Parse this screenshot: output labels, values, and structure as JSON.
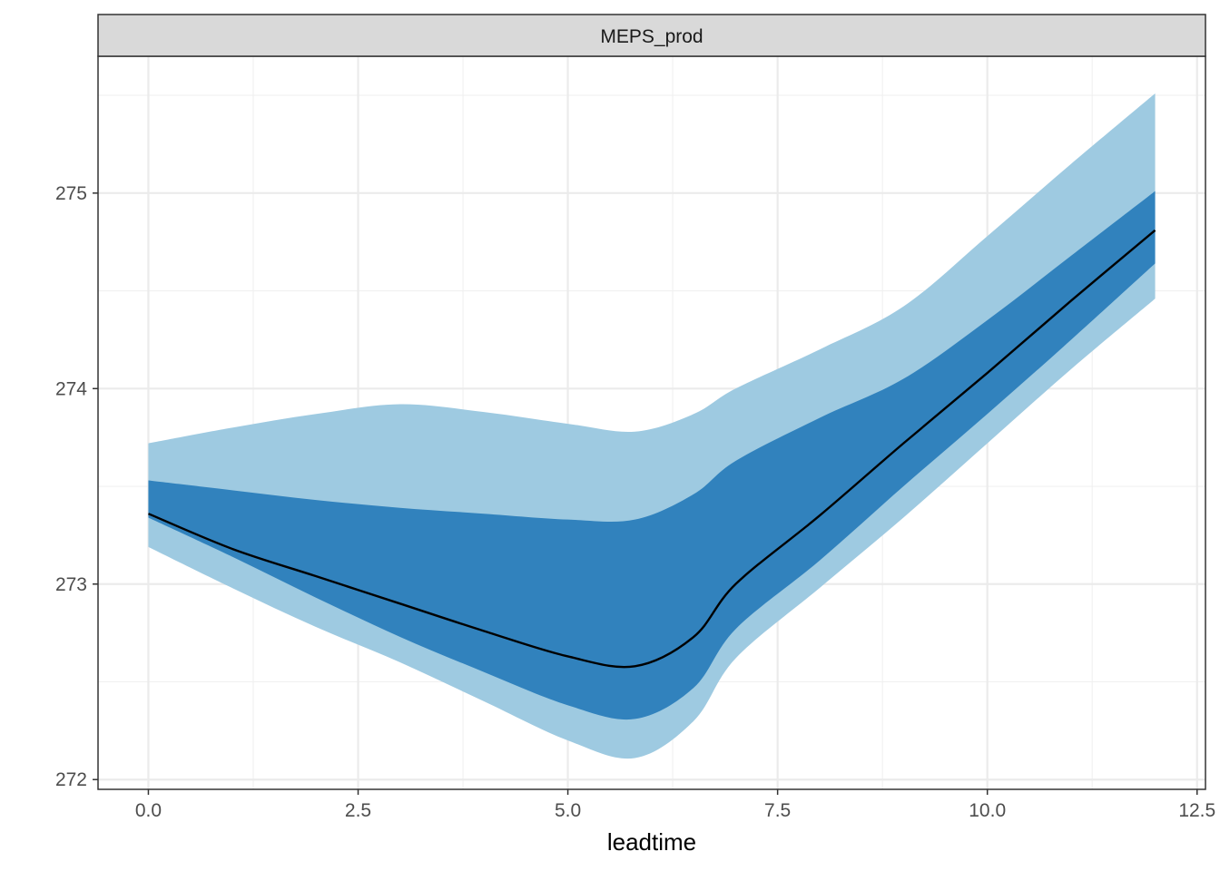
{
  "chart_data": {
    "type": "area",
    "facet": "MEPS_prod",
    "xlabel": "leadtime",
    "ylabel": "",
    "xlim": [
      -0.6,
      12.6
    ],
    "ylim": [
      271.95,
      275.7
    ],
    "x_ticks": [
      0,
      2.5,
      5,
      7.5,
      10,
      12.5
    ],
    "x_tick_labels": [
      "0.0",
      "2.5",
      "5.0",
      "7.5",
      "10.0",
      "12.5"
    ],
    "y_ticks": [
      272,
      273,
      274,
      275
    ],
    "y_tick_labels": [
      "272",
      "273",
      "274",
      "275"
    ],
    "grid": true,
    "x": [
      0,
      1,
      2,
      3,
      4,
      5,
      5.8,
      6.5,
      7,
      8,
      9,
      10,
      11,
      12
    ],
    "series": [
      {
        "role": "outer-band",
        "color": "#9ecae1",
        "upper": [
          273.72,
          273.8,
          273.87,
          273.92,
          273.88,
          273.82,
          273.78,
          273.87,
          274.0,
          274.2,
          274.42,
          274.78,
          275.15,
          275.51
        ],
        "lower": [
          273.19,
          272.98,
          272.78,
          272.6,
          272.4,
          272.2,
          272.11,
          272.3,
          272.62,
          272.98,
          273.34,
          273.72,
          274.1,
          274.46
        ]
      },
      {
        "role": "inner-band",
        "color": "#3182bd",
        "upper": [
          273.53,
          273.48,
          273.43,
          273.39,
          273.36,
          273.33,
          273.33,
          273.46,
          273.63,
          273.85,
          274.05,
          274.35,
          274.68,
          275.01
        ],
        "lower": [
          273.34,
          273.14,
          272.93,
          272.73,
          272.55,
          272.38,
          272.31,
          272.47,
          272.77,
          273.12,
          273.5,
          273.87,
          274.25,
          274.64
        ]
      },
      {
        "role": "median",
        "color": "#000000",
        "values": [
          273.36,
          273.18,
          273.04,
          272.9,
          272.76,
          272.63,
          272.58,
          272.73,
          273.0,
          273.35,
          273.72,
          274.08,
          274.45,
          274.81
        ]
      }
    ]
  }
}
